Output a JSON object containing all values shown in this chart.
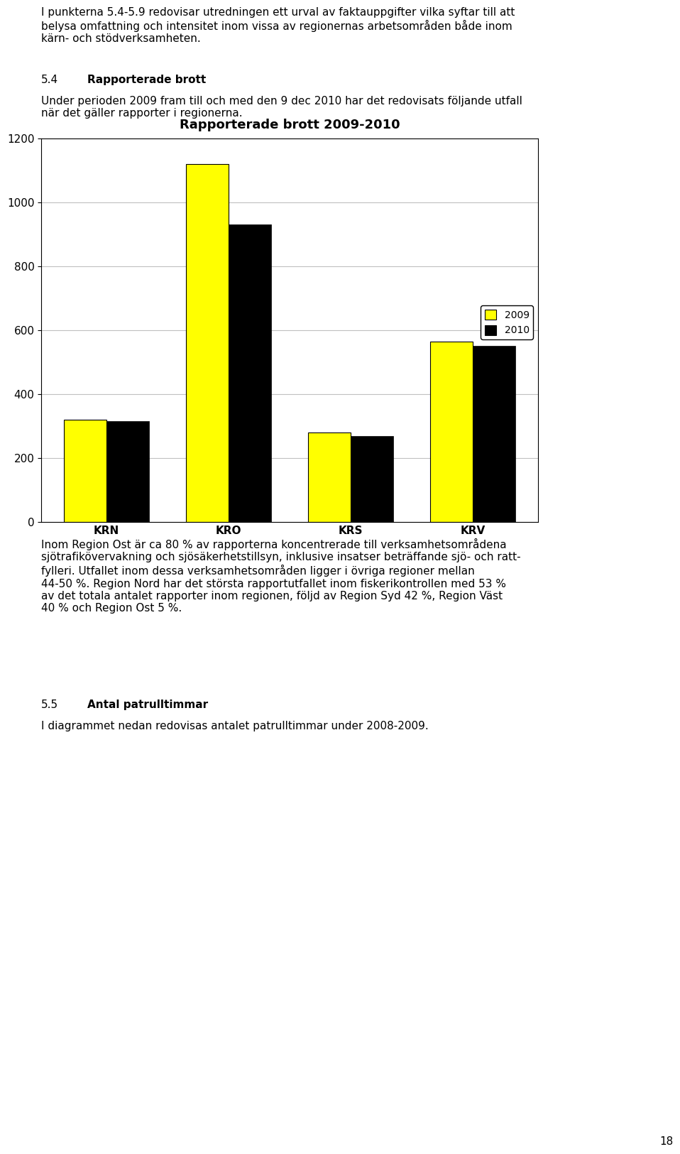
{
  "title": "Rapporterade brott 2009-2010",
  "categories": [
    "KRN",
    "KRO",
    "KRS",
    "KRV"
  ],
  "values_2009": [
    320,
    1120,
    280,
    565
  ],
  "values_2010": [
    315,
    930,
    270,
    550
  ],
  "color_2009": "#ffff00",
  "color_2010": "#000000",
  "ylim": [
    0,
    1200
  ],
  "yticks": [
    0,
    200,
    400,
    600,
    800,
    1000,
    1200
  ],
  "bar_width": 0.35,
  "legend_labels": [
    "2009",
    "2010"
  ],
  "chart_title_fontsize": 13,
  "tick_fontsize": 10,
  "legend_fontsize": 10,
  "background_color": "#ffffff",
  "plot_bg_color": "#ffffff",
  "grid_color": "#c0c0c0",
  "text_top": "I punkterna 5.4-5.9 redovisar utredningen ett urval av faktauppgifter vilka syftar till att\nbelysa omfattning och intensitet inom vissa av regionernas arbetsområden både inom\nkärn- och stödverksamheten.",
  "section_header_num": "5.4",
  "section_header_tab": "        ",
  "section_header_title": "Rapporterade brott",
  "section_body": "Under perioden 2009 fram till och med den 9 dec 2010 har det redovisats följande utfall\nnär det gäller rapporter i regionerna.",
  "text_below1": "Inom Region Ost är ca 80 % av rapporterna koncentrerade till verksamhetsområdena\nsjötrafikövervakning och sjösäkerhetstillsyn, inklusive insatser beträffande sjö- och ratt-\nfylleri. Utfallet inom dessa verksamhetsområden ligger i övriga regioner mellan\n44-50 %. Region Nord har det största rapportutfallet inom fiskerikontrollen med 53 %\nav det totala antalet rapporter inom regionen, följd av Region Syd 42 %, Region Väst\n40 % och Region Ost 5 %.",
  "section_header2_num": "5.5",
  "section_header2_tab": "        ",
  "section_header2_title": "Antal patrulltimmar",
  "text_below2": "I diagrammet nedan redovisas antalet patrulltimmar under 2008-2009.",
  "page_number": "18"
}
